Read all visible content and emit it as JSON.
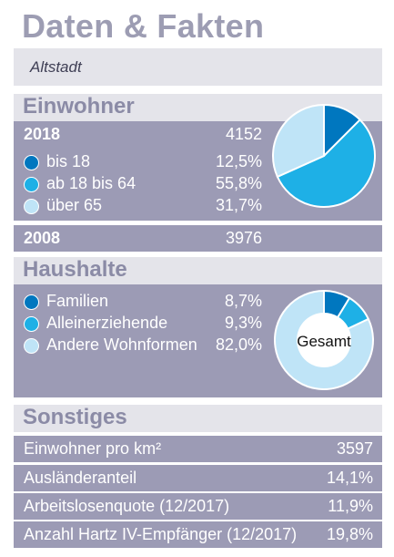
{
  "title": "Daten & Fakten",
  "subtitle": "Altstadt",
  "einwohner": {
    "heading": "Einwohner",
    "year_current": "2018",
    "total_current": "4152",
    "year_prev": "2008",
    "total_prev": "3976",
    "groups": [
      {
        "label": "bis 18",
        "value_text": "12,5%",
        "color": "#0077bf"
      },
      {
        "label": "ab 18 bis 64",
        "value_text": "55,8%",
        "color": "#1eb0e6"
      },
      {
        "label": "über 65",
        "value_text": "31,7%",
        "color": "#bfe4f7"
      }
    ]
  },
  "haushalte": {
    "heading": "Haushalte",
    "center_label": "Gesamt",
    "groups": [
      {
        "label": "Familien",
        "value_text": "8,7%",
        "color": "#0077bf"
      },
      {
        "label": "Alleinerziehende",
        "value_text": "9,3%",
        "color": "#1eb0e6"
      },
      {
        "label": "Andere Wohnformen",
        "value_text": "82,0%",
        "color": "#bfe4f7"
      }
    ]
  },
  "sonstiges": {
    "heading": "Sonstiges",
    "rows": [
      {
        "label": "Einwohner pro km²",
        "value": "3597"
      },
      {
        "label": "Ausländeranteil",
        "value": "14,1%"
      },
      {
        "label": "Arbeitslosenquote (12/2017)",
        "value": "11,9%"
      },
      {
        "label": "Anzahl Hartz IV-Empfänger (12/2017)",
        "value": "19,8%"
      }
    ]
  },
  "chart_data": [
    {
      "type": "pie",
      "categories": [
        "bis 18",
        "ab 18 bis 64",
        "über 65"
      ],
      "values": [
        12.5,
        55.8,
        31.7
      ],
      "colors": [
        "#0077bf",
        "#1eb0e6",
        "#bfe4f7"
      ]
    },
    {
      "type": "pie",
      "variant": "donut",
      "title": "Gesamt",
      "categories": [
        "Familien",
        "Alleinerziehende",
        "Andere Wohnformen"
      ],
      "values": [
        8.7,
        9.3,
        82.0
      ],
      "colors": [
        "#0077bf",
        "#1eb0e6",
        "#bfe4f7"
      ]
    }
  ]
}
